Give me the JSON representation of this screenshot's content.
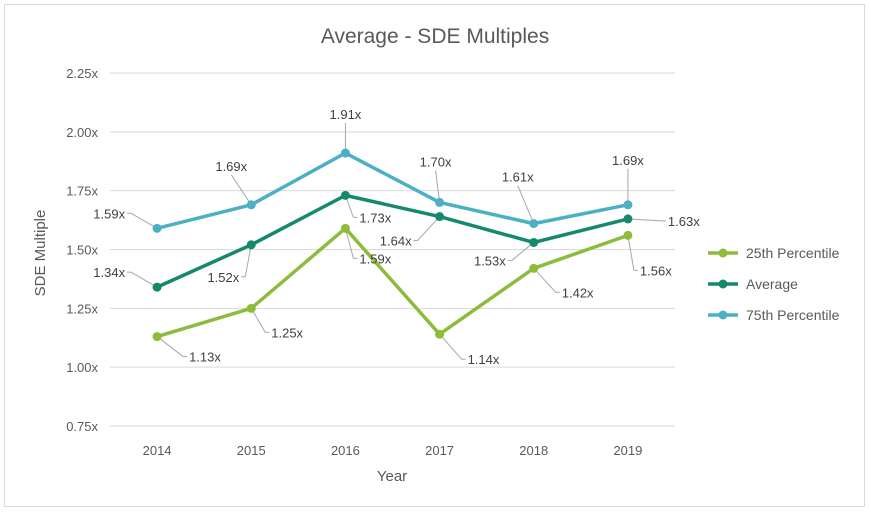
{
  "chart_data": {
    "type": "line",
    "title": "Average - SDE Multiples",
    "xlabel": "Year",
    "ylabel": "SDE Multiple",
    "categories": [
      "2014",
      "2015",
      "2016",
      "2017",
      "2018",
      "2019"
    ],
    "ylim": [
      0.75,
      2.25
    ],
    "yticks": [
      0.75,
      1.0,
      1.25,
      1.5,
      1.75,
      2.0,
      2.25
    ],
    "ytick_labels": [
      "0.75x",
      "1.00x",
      "1.25x",
      "1.50x",
      "1.75x",
      "2.00x",
      "2.25x"
    ],
    "grid": true,
    "legend_position": "right",
    "series": [
      {
        "name": "25th Percentile",
        "color": "#8dbb3b",
        "values": [
          1.13,
          1.25,
          1.59,
          1.14,
          1.42,
          1.56
        ],
        "labels": [
          "1.13x",
          "1.25x",
          "1.59x",
          "1.14x",
          "1.42x",
          "1.56x"
        ]
      },
      {
        "name": "Average",
        "color": "#15896b",
        "values": [
          1.34,
          1.52,
          1.73,
          1.64,
          1.53,
          1.63
        ],
        "labels": [
          "1.34x",
          "1.52x",
          "1.73x",
          "1.64x",
          "1.53x",
          "1.63x"
        ]
      },
      {
        "name": "75th Percentile",
        "color": "#4bb0c4",
        "values": [
          1.59,
          1.69,
          1.91,
          1.7,
          1.61,
          1.69
        ],
        "labels": [
          "1.59x",
          "1.69x",
          "1.91x",
          "1.70x",
          "1.61x",
          "1.69x"
        ]
      }
    ]
  }
}
